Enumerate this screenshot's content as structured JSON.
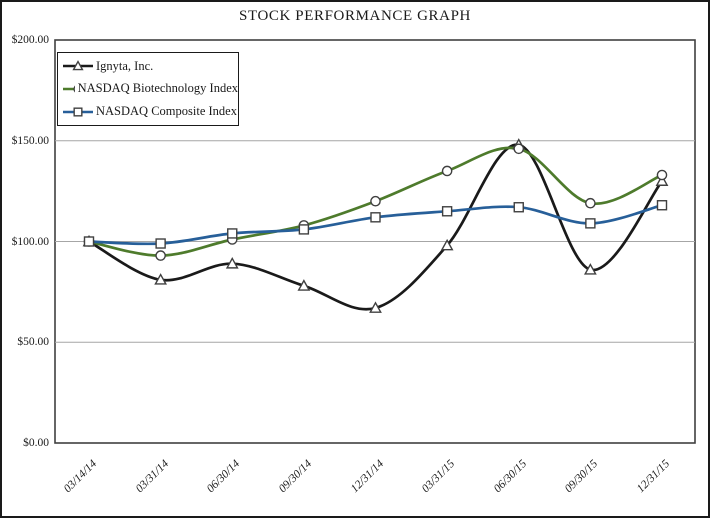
{
  "chart_data": {
    "type": "line",
    "title": "STOCK PERFORMANCE GRAPH",
    "categories": [
      "03/14/14",
      "03/31/14",
      "06/30/14",
      "09/30/14",
      "12/31/14",
      "03/31/15",
      "06/30/15",
      "09/30/15",
      "12/31/15"
    ],
    "series": [
      {
        "name": "Ignyta, Inc.",
        "marker": "triangle",
        "color": "#1a1a1a",
        "values": [
          100,
          81,
          89,
          78,
          67,
          98,
          148,
          86,
          130
        ]
      },
      {
        "name": "NASDAQ Biotechnology Index",
        "marker": "circle",
        "color": "#4e7b2c",
        "values": [
          100,
          93,
          101,
          108,
          120,
          135,
          146,
          119,
          133
        ]
      },
      {
        "name": "NASDAQ Composite Index",
        "marker": "square",
        "color": "#275f99",
        "values": [
          100,
          99,
          104,
          106,
          112,
          115,
          117,
          109,
          118
        ]
      }
    ],
    "ytick_values": [
      200,
      150,
      100,
      50,
      0
    ],
    "ytick_labels": [
      "$200.00",
      "$150.00",
      "$100.00",
      "$50.00",
      "$0.00"
    ],
    "grid_values": [
      150,
      100,
      50
    ],
    "ylim": [
      0,
      200
    ],
    "xlabel": "",
    "ylabel": "",
    "grid": true,
    "smooth_lines": true,
    "legend_position": "top-left",
    "colors": {
      "marker_fill": "#ffffff",
      "marker_outline": "#404040",
      "gridline": "#a6a6a6",
      "plot_border": "#404040",
      "text": "#1a1a1a"
    }
  }
}
